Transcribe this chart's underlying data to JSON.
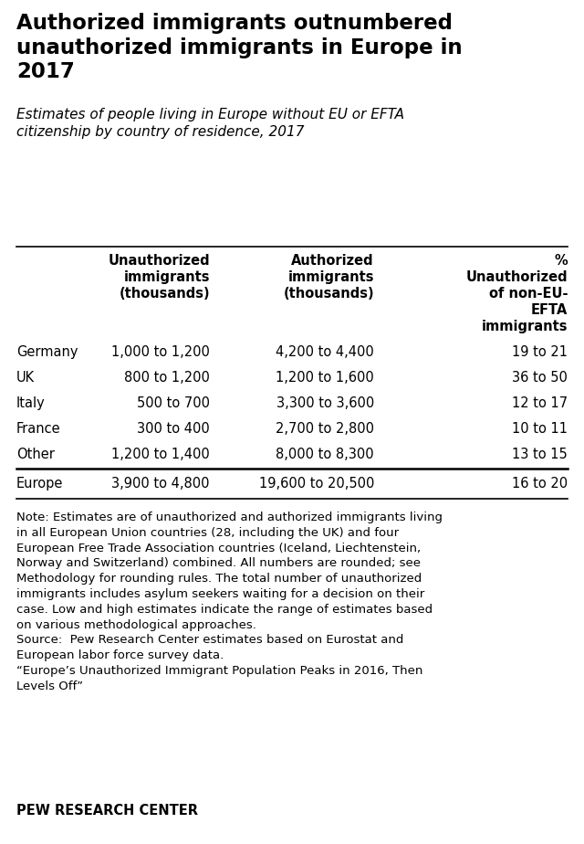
{
  "title": "Authorized immigrants outnumbered\nunauthorized immigrants in Europe in\n2017",
  "subtitle": "Estimates of people living in Europe without EU or EFTA\ncitizenship by country of residence, 2017",
  "col_headers": [
    "Unauthorized\nimmigrants\n(thousands)",
    "Authorized\nimmigrants\n(thousands)",
    "%\nUnauthorized\nof non-EU-\nEFTA\nimmigrants"
  ],
  "row_labels": [
    "Germany",
    "UK",
    "Italy",
    "France",
    "Other",
    "Europe"
  ],
  "col1_data": [
    "1,000 to 1,200",
    "800 to 1,200",
    "500 to 700",
    "300 to 400",
    "1,200 to 1,400",
    "3,900 to 4,800"
  ],
  "col2_data": [
    "4,200 to 4,400",
    "1,200 to 1,600",
    "3,300 to 3,600",
    "2,700 to 2,800",
    "8,000 to 8,300",
    "19,600 to 20,500"
  ],
  "col3_data": [
    "19 to 21",
    "36 to 50",
    "12 to 17",
    "10 to 11",
    "13 to 15",
    "16 to 20"
  ],
  "note_text": "Note: Estimates are of unauthorized and authorized immigrants living\nin all European Union countries (28, including the UK) and four\nEuropean Free Trade Association countries (Iceland, Liechtenstein,\nNorway and Switzerland) combined. All numbers are rounded; see\nMethodology for rounding rules. The total number of unauthorized\nimmigrants includes asylum seekers waiting for a decision on their\ncase. Low and high estimates indicate the range of estimates based\non various methodological approaches.\nSource:  Pew Research Center estimates based on Eurostat and\nEuropean labor force survey data.\n“Europe’s Unauthorized Immigrant Population Peaks in 2016, Then\nLevels Off”",
  "source_label": "PEW RESEARCH CENTER",
  "bg_color": "#ffffff",
  "title_fontsize": 16.5,
  "subtitle_fontsize": 11,
  "header_fontsize": 10.5,
  "data_fontsize": 10.5,
  "note_fontsize": 9.5,
  "source_fontsize": 10.5
}
